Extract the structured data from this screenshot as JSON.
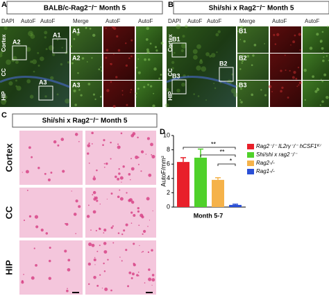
{
  "panel_a": {
    "letter": "A",
    "title": "BALB/c-Rag2⁻/⁻ Month 5",
    "channels": [
      "DAPI",
      "AutoF",
      "AutoF"
    ],
    "columns": [
      "Merge",
      "AutoF",
      "AutoF"
    ],
    "regions": [
      "Cortex",
      "CC",
      "HIP"
    ],
    "boxes": [
      "A1",
      "A2",
      "A3"
    ]
  },
  "panel_b": {
    "letter": "B",
    "title": "Shi/shi x Rag2⁻/⁻ Month 5",
    "channels": [
      "DAPI",
      "AutoF",
      "AutoF"
    ],
    "columns": [
      "Merge",
      "AutoF",
      "AutoF"
    ],
    "regions": [
      "Cortex",
      "CC",
      "HIP"
    ],
    "boxes": [
      "B1",
      "B2",
      "B3"
    ]
  },
  "panel_c": {
    "letter": "C",
    "title": "Shi/shi x Rag2⁻/⁻ Month 5",
    "regions": [
      "Cortex",
      "CC",
      "HIP"
    ]
  },
  "chart_data": {
    "letter": "D",
    "type": "bar",
    "y_label": "AutoF/mm²",
    "categories": [
      "Month 5-7"
    ],
    "ylim": [
      0,
      10
    ],
    "yticks": [
      0,
      2,
      4,
      6,
      8,
      10
    ],
    "series": [
      {
        "name": "Rag2⁻/⁻ IL2rγ⁻/⁻ hCSF1ᴷⁱ",
        "color": "#e8202a",
        "values": [
          6.3
        ],
        "errors": [
          0.6
        ]
      },
      {
        "name": "Shi/shi x rag2⁻/⁻",
        "color": "#4fd12a",
        "values": [
          6.9
        ],
        "errors": [
          1.2
        ]
      },
      {
        "name": "Rag2-/-",
        "color": "#f5b24a",
        "values": [
          3.8
        ],
        "errors": [
          0.3
        ]
      },
      {
        "name": "Rag1-/-",
        "color": "#2a4fd6",
        "values": [
          0.3
        ],
        "errors": [
          0.1
        ]
      }
    ],
    "significance": [
      "**",
      "**",
      "*"
    ]
  }
}
